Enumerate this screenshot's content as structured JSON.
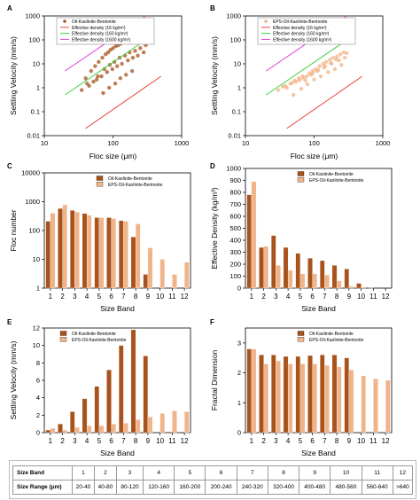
{
  "colors": {
    "oil": "#a8531c",
    "eps": "#f0b48a",
    "red_line": "#e8413a",
    "green_line": "#3fcf45",
    "magenta_line": "#e03cd8"
  },
  "chart_data": [
    {
      "panel": "A",
      "type": "scatter",
      "xlabel": "Floc size (μm)",
      "ylabel": "Settling Velocity (mm/s)",
      "xscale": "log",
      "yscale": "log",
      "xlim": [
        10,
        1000
      ],
      "ylim": [
        0.01,
        1000
      ],
      "x_ticks": [
        "10",
        "100",
        "1000"
      ],
      "y_ticks": [
        "0.01",
        "0.1",
        "1",
        "10",
        "100",
        "1000"
      ],
      "legend_position": "top-left",
      "series": [
        {
          "name": "Oil-Kaolinite-Bentonite",
          "kind": "points",
          "color": "#a8531c",
          "x": [
            40,
            48,
            55,
            62,
            70,
            78,
            85,
            92,
            100,
            110,
            120,
            130,
            145,
            160,
            180,
            200,
            60,
            75,
            90,
            105,
            125,
            150,
            175,
            210,
            250,
            300,
            45,
            52,
            68,
            82,
            98,
            115,
            135,
            165,
            195,
            230,
            280,
            35,
            42,
            58,
            72,
            88,
            108,
            128,
            155,
            190
          ],
          "y": [
            2.5,
            5,
            8,
            12,
            18,
            25,
            30,
            38,
            45,
            55,
            60,
            70,
            80,
            90,
            100,
            120,
            3,
            6,
            9,
            12,
            18,
            22,
            30,
            35,
            45,
            60,
            1.2,
            1.8,
            3,
            4.5,
            6,
            8,
            10,
            14,
            18,
            22,
            30,
            0.8,
            1.5,
            2.2,
            0.6,
            1.0,
            1.5,
            2.5,
            3.5,
            5
          ]
        },
        {
          "name": "Effective density (16 kg/m^3)",
          "kind": "line",
          "color": "#e8413a",
          "x": [
            40,
            500
          ],
          "y": [
            0.02,
            3
          ]
        },
        {
          "name": "Effective density (160 kg/m^3)",
          "kind": "line",
          "color": "#3fcf45",
          "x": [
            20,
            300
          ],
          "y": [
            0.5,
            100
          ]
        },
        {
          "name": "Effective density (1600 kg/m^3)",
          "kind": "line",
          "color": "#e03cd8",
          "x": [
            20,
            300
          ],
          "y": [
            5,
            1000
          ]
        }
      ]
    },
    {
      "panel": "B",
      "type": "scatter",
      "xlabel": "Floc size (μm)",
      "ylabel": "Settling Velocity (mm/s)",
      "xscale": "log",
      "yscale": "log",
      "xlim": [
        10,
        1000
      ],
      "ylim": [
        0.01,
        1000
      ],
      "x_ticks": [
        "10",
        "100",
        "1000"
      ],
      "y_ticks": [
        "0.01",
        "0.1",
        "1",
        "10",
        "100",
        "1000"
      ],
      "legend_position": "top-left",
      "series": [
        {
          "name": "EPS-Oil-Kaolinite-Bentonite",
          "kind": "points",
          "color": "#f0b48a",
          "x": [
            30,
            38,
            45,
            52,
            60,
            68,
            75,
            85,
            95,
            105,
            120,
            135,
            150,
            170,
            190,
            215,
            240,
            270,
            300,
            50,
            65,
            80,
            100,
            125,
            160,
            200,
            250,
            40,
            55,
            70,
            90,
            110,
            140,
            180,
            230,
            280,
            35,
            48,
            62,
            78,
            95,
            115,
            145,
            175,
            210
          ],
          "y": [
            0.8,
            1.2,
            1.5,
            2,
            2.5,
            3,
            2,
            4,
            5,
            6,
            8,
            10,
            12,
            15,
            18,
            20,
            25,
            30,
            28,
            0.5,
            0.9,
            1.4,
            2.2,
            3,
            4.5,
            6,
            9,
            1,
            1.8,
            2.5,
            3.5,
            5,
            7,
            10,
            14,
            18,
            1.1,
            1.6,
            2.1,
            3,
            4,
            5.5,
            8,
            11,
            15
          ]
        },
        {
          "name": "Effective density (16 kg/m^3)",
          "kind": "line",
          "color": "#e8413a",
          "x": [
            40,
            500
          ],
          "y": [
            0.02,
            3
          ]
        },
        {
          "name": "Effective density (160 kg/m^3)",
          "kind": "line",
          "color": "#3fcf45",
          "x": [
            20,
            300
          ],
          "y": [
            0.5,
            100
          ]
        },
        {
          "name": "Effective density (1600 kg/m^3)",
          "kind": "line",
          "color": "#e03cd8",
          "x": [
            20,
            300
          ],
          "y": [
            5,
            1000
          ]
        }
      ]
    },
    {
      "panel": "C",
      "type": "bar",
      "xlabel": "Size Band",
      "ylabel": "Floc number",
      "yscale": "log",
      "ylim": [
        1,
        10000
      ],
      "y_ticks": [
        "1",
        "10",
        "100",
        "1000",
        "10000"
      ],
      "categories": [
        "1",
        "2",
        "3",
        "4",
        "5",
        "6",
        "7",
        "8",
        "9",
        "10",
        "11",
        "12"
      ],
      "legend_position": "top-right",
      "series": [
        {
          "name": "Oil-Kaolinite-Bentonite",
          "color": "#a8531c",
          "values": [
            210,
            580,
            500,
            390,
            280,
            280,
            220,
            60,
            3,
            null,
            null,
            null
          ]
        },
        {
          "name": "EPS-Oil-Kaolinite-Bentonite",
          "color": "#f0b48a",
          "values": [
            400,
            780,
            440,
            340,
            280,
            260,
            210,
            170,
            25,
            10,
            3,
            8
          ]
        }
      ]
    },
    {
      "panel": "D",
      "type": "bar",
      "xlabel": "Size Band",
      "ylabel": "Effective Density (kg/m^3)",
      "ylim": [
        0,
        1000
      ],
      "y_ticks": [
        "0",
        "100",
        "200",
        "300",
        "400",
        "500",
        "600",
        "700",
        "800",
        "900",
        "1000"
      ],
      "categories": [
        "1",
        "2",
        "3",
        "4",
        "5",
        "6",
        "7",
        "8",
        "9",
        "10",
        "11",
        "12"
      ],
      "legend_position": "top-right",
      "series": [
        {
          "name": "Oil-Kaolinite-Bentonite",
          "color": "#a8531c",
          "values": [
            780,
            340,
            440,
            340,
            290,
            250,
            230,
            190,
            160,
            40,
            5,
            null
          ]
        },
        {
          "name": "EPS-Oil-Kaolinite-Bentonite",
          "color": "#f0b48a",
          "values": [
            890,
            350,
            190,
            150,
            120,
            120,
            110,
            60,
            15,
            10,
            null,
            null
          ]
        }
      ]
    },
    {
      "panel": "E",
      "type": "bar",
      "xlabel": "Size Band",
      "ylabel": "Settling Velocity (mm/s)",
      "ylim": [
        0,
        12
      ],
      "y_ticks": [
        "0",
        "2",
        "4",
        "6",
        "8",
        "10",
        "12"
      ],
      "categories": [
        "1",
        "2",
        "3",
        "4",
        "5",
        "6",
        "7",
        "8",
        "9",
        "10",
        "11",
        "12"
      ],
      "legend_position": "top-left",
      "series": [
        {
          "name": "Oil-Kaolinite-Bentonite",
          "color": "#a8531c",
          "values": [
            0.3,
            1.0,
            2.4,
            3.9,
            5.3,
            7.2,
            10.0,
            11.8,
            8.8,
            null,
            null,
            null
          ]
        },
        {
          "name": "EPS-Oil-Kaolinite-Bentonite",
          "color": "#f0b48a",
          "values": [
            0.5,
            0.3,
            0.6,
            0.8,
            0.8,
            1.0,
            1.1,
            1.5,
            1.8,
            2.2,
            2.5,
            2.4
          ]
        }
      ]
    },
    {
      "panel": "F",
      "type": "bar",
      "xlabel": "Size Band",
      "ylabel": "Fractal Dimension",
      "ylim": [
        0,
        3.5
      ],
      "y_ticks": [
        "0",
        "1",
        "2",
        "3"
      ],
      "categories": [
        "1",
        "2",
        "3",
        "4",
        "5",
        "6",
        "7",
        "8",
        "9",
        "10",
        "11",
        "12"
      ],
      "legend_position": "top-right",
      "series": [
        {
          "name": "Oil-Kaolinite-Bentonite",
          "color": "#a8531c",
          "values": [
            2.8,
            2.6,
            2.6,
            2.55,
            2.55,
            2.58,
            2.6,
            2.6,
            2.5,
            null,
            null,
            null
          ]
        },
        {
          "name": "EPS-Oil-Kaolinite-Bentonite",
          "color": "#f0b48a",
          "values": [
            2.8,
            2.3,
            2.4,
            2.3,
            2.3,
            2.3,
            2.25,
            2.2,
            2.1,
            1.9,
            1.8,
            1.75
          ]
        }
      ]
    }
  ],
  "table": {
    "row_labels": [
      "Size Band",
      "Size Range (μm)"
    ],
    "bands": [
      "1",
      "2",
      "3",
      "4",
      "5",
      "6",
      "7",
      "8",
      "9",
      "10",
      "11",
      "12"
    ],
    "ranges": [
      "20-40",
      "40-80",
      "80-120",
      "120-160",
      "160-200",
      "200-240",
      "240-320",
      "320-400",
      "400-480",
      "480-560",
      "560-640",
      ">640"
    ]
  }
}
